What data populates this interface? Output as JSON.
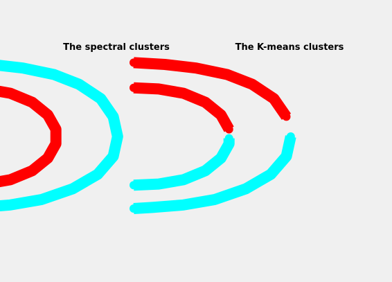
{
  "figure": {
    "background": "#f0f0f0"
  },
  "chart_data": [
    {
      "type": "scatter",
      "title": "The spectral clusters",
      "xlabel": "",
      "ylabel": "",
      "axes_visible": false,
      "series": [
        {
          "name": "outer-arc",
          "color": "#00ffff",
          "points": [
            [
              -1.5,
              2.05
            ],
            [
              -1.0,
              2.0
            ],
            [
              -0.5,
              1.9
            ],
            [
              0.0,
              1.72
            ],
            [
              0.4,
              1.45
            ],
            [
              0.75,
              1.05
            ],
            [
              0.95,
              0.55
            ],
            [
              1.02,
              0.0
            ],
            [
              0.95,
              -0.55
            ],
            [
              0.7,
              -1.05
            ],
            [
              0.3,
              -1.45
            ],
            [
              -0.2,
              -1.75
            ],
            [
              -0.7,
              -1.9
            ],
            [
              -1.2,
              -1.97
            ],
            [
              -1.5,
              -2.0
            ]
          ]
        },
        {
          "name": "inner-arc",
          "color": "#ff0000",
          "points": [
            [
              -1.5,
              1.35
            ],
            [
              -1.1,
              1.32
            ],
            [
              -0.7,
              1.2
            ],
            [
              -0.35,
              0.95
            ],
            [
              -0.1,
              0.6
            ],
            [
              0.03,
              0.2
            ],
            [
              0.03,
              -0.2
            ],
            [
              -0.1,
              -0.6
            ],
            [
              -0.35,
              -0.95
            ],
            [
              -0.7,
              -1.2
            ],
            [
              -1.1,
              -1.32
            ],
            [
              -1.5,
              -1.35
            ]
          ]
        }
      ]
    },
    {
      "type": "scatter",
      "title": "The K-means clusters",
      "xlabel": "",
      "ylabel": "",
      "axes_visible": false,
      "series": [
        {
          "name": "upper-cluster",
          "color": "#ff0000",
          "points": [
            [
              -1.5,
              2.05
            ],
            [
              -1.0,
              2.0
            ],
            [
              -0.5,
              1.9
            ],
            [
              0.0,
              1.72
            ],
            [
              0.4,
              1.45
            ],
            [
              0.75,
              1.05
            ],
            [
              0.95,
              0.55
            ],
            [
              -1.5,
              1.35
            ],
            [
              -1.1,
              1.32
            ],
            [
              -0.7,
              1.2
            ],
            [
              -0.35,
              0.95
            ],
            [
              -0.1,
              0.6
            ],
            [
              0.03,
              0.2
            ]
          ]
        },
        {
          "name": "lower-cluster",
          "color": "#00ffff",
          "points": [
            [
              1.02,
              0.0
            ],
            [
              0.95,
              -0.55
            ],
            [
              0.7,
              -1.05
            ],
            [
              0.3,
              -1.45
            ],
            [
              -0.2,
              -1.75
            ],
            [
              -0.7,
              -1.9
            ],
            [
              -1.2,
              -1.97
            ],
            [
              -1.5,
              -2.0
            ],
            [
              0.03,
              -0.05
            ],
            [
              0.03,
              -0.2
            ],
            [
              -0.1,
              -0.6
            ],
            [
              -0.35,
              -0.95
            ],
            [
              -0.7,
              -1.2
            ],
            [
              -1.1,
              -1.32
            ],
            [
              -1.5,
              -1.35
            ]
          ]
        }
      ]
    }
  ]
}
